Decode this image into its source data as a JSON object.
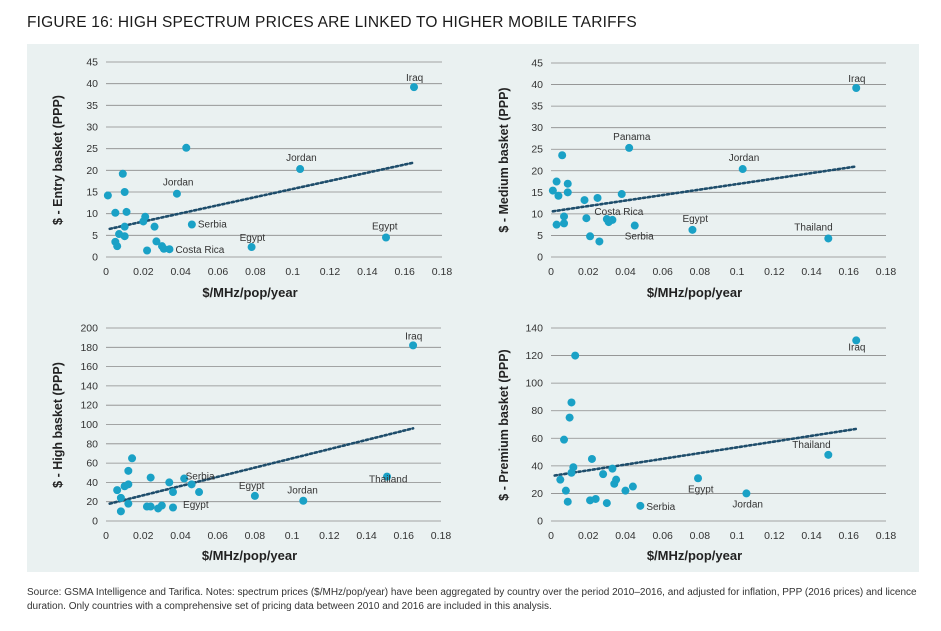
{
  "figure_title": "FIGURE 16: HIGH SPECTRUM PRICES ARE LINKED TO HIGHER MOBILE TARIFFS",
  "source_note": "Source: GSMA Intelligence and Tarifica. Notes: spectrum prices ($/MHz/pop/year) have been aggregated by country over the period 2010–2016, and adjusted for inflation, PPP (2016 prices) and licence duration. Only countries with a comprehensive set of pricing data between 2010 and 2016 are included in this analysis.",
  "colors": {
    "points": "#1aa1c6",
    "trend": "#1e4d6b",
    "grid": "#8a8a8a",
    "background": "#eaf1f1"
  },
  "chart_data": [
    {
      "type": "scatter",
      "title": "",
      "xlabel": "$/MHz/pop/year",
      "ylabel": "$ - Entry basket (PPP)",
      "xlim": [
        0,
        0.18
      ],
      "ylim": [
        0,
        45
      ],
      "xticks": [
        "0",
        "0.02",
        "0.04",
        "0.06",
        "0.08",
        "0.1",
        "0.12",
        "0.14",
        "0.16",
        "0.18"
      ],
      "yticks": [
        "0",
        "5",
        "10",
        "15",
        "20",
        "25",
        "30",
        "35",
        "40",
        "45"
      ],
      "grid": "horizontal",
      "points": [
        {
          "x": 0.001,
          "y": 14.2
        },
        {
          "x": 0.005,
          "y": 10.2
        },
        {
          "x": 0.005,
          "y": 3.5
        },
        {
          "x": 0.006,
          "y": 2.5
        },
        {
          "x": 0.007,
          "y": 5.3
        },
        {
          "x": 0.009,
          "y": 19.2
        },
        {
          "x": 0.01,
          "y": 15.0
        },
        {
          "x": 0.011,
          "y": 10.4
        },
        {
          "x": 0.01,
          "y": 4.8
        },
        {
          "x": 0.01,
          "y": 7.0
        },
        {
          "x": 0.02,
          "y": 8.2
        },
        {
          "x": 0.021,
          "y": 9.3
        },
        {
          "x": 0.022,
          "y": 1.5
        },
        {
          "x": 0.026,
          "y": 7.0
        },
        {
          "x": 0.027,
          "y": 3.6
        },
        {
          "x": 0.03,
          "y": 2.5
        },
        {
          "x": 0.031,
          "y": 1.9
        },
        {
          "x": 0.034,
          "y": 1.8
        },
        {
          "x": 0.038,
          "y": 14.6
        },
        {
          "x": 0.043,
          "y": 25.2
        },
        {
          "x": 0.046,
          "y": 7.5
        },
        {
          "x": 0.078,
          "y": 2.3
        },
        {
          "x": 0.104,
          "y": 20.3
        },
        {
          "x": 0.15,
          "y": 4.5
        },
        {
          "x": 0.165,
          "y": 39.2
        }
      ],
      "trendline": [
        {
          "x": 0.002,
          "y": 6.5
        },
        {
          "x": 0.165,
          "y": 21.8
        }
      ],
      "annotations": [
        {
          "text": "Iraq",
          "x": 0.165,
          "y": 39.2
        },
        {
          "text": "Jordan",
          "x": 0.104,
          "y": 20.3
        },
        {
          "text": "Jordan",
          "x": 0.038,
          "y": 14.6
        },
        {
          "text": "Serbia",
          "x": 0.046,
          "y": 7.5
        },
        {
          "text": "Egypt",
          "x": 0.15,
          "y": 4.5
        },
        {
          "text": "Egypt",
          "x": 0.078,
          "y": 2.3
        },
        {
          "text": "Costa Rica",
          "x": 0.034,
          "y": 1.8
        }
      ]
    },
    {
      "type": "scatter",
      "title": "",
      "xlabel": "$/MHz/pop/year",
      "ylabel": "$ - Medium basket (PPP)",
      "xlim": [
        0,
        0.18
      ],
      "ylim": [
        0,
        45
      ],
      "xticks": [
        "0",
        "0.02",
        "0.04",
        "0.06",
        "0.08",
        "0.1",
        "0.12",
        "0.14",
        "0.16",
        "0.18"
      ],
      "yticks": [
        "0",
        "5",
        "10",
        "15",
        "20",
        "25",
        "30",
        "35",
        "40",
        "45"
      ],
      "grid": "horizontal",
      "points": [
        {
          "x": 0.001,
          "y": 15.4
        },
        {
          "x": 0.003,
          "y": 17.5
        },
        {
          "x": 0.003,
          "y": 7.5
        },
        {
          "x": 0.004,
          "y": 14.2
        },
        {
          "x": 0.006,
          "y": 23.6
        },
        {
          "x": 0.007,
          "y": 9.4
        },
        {
          "x": 0.007,
          "y": 7.8
        },
        {
          "x": 0.009,
          "y": 17.0
        },
        {
          "x": 0.009,
          "y": 15.0
        },
        {
          "x": 0.018,
          "y": 13.2
        },
        {
          "x": 0.019,
          "y": 9.0
        },
        {
          "x": 0.021,
          "y": 4.8
        },
        {
          "x": 0.025,
          "y": 13.7
        },
        {
          "x": 0.026,
          "y": 3.6
        },
        {
          "x": 0.03,
          "y": 8.8
        },
        {
          "x": 0.031,
          "y": 8.1
        },
        {
          "x": 0.033,
          "y": 8.6
        },
        {
          "x": 0.038,
          "y": 14.6
        },
        {
          "x": 0.042,
          "y": 25.3
        },
        {
          "x": 0.045,
          "y": 7.3
        },
        {
          "x": 0.076,
          "y": 6.3
        },
        {
          "x": 0.103,
          "y": 20.4
        },
        {
          "x": 0.149,
          "y": 4.3
        },
        {
          "x": 0.164,
          "y": 39.2
        }
      ],
      "trendline": [
        {
          "x": 0.001,
          "y": 10.6
        },
        {
          "x": 0.164,
          "y": 21.0
        }
      ],
      "annotations": [
        {
          "text": "Iraq",
          "x": 0.164,
          "y": 39.2
        },
        {
          "text": "Panama",
          "x": 0.042,
          "y": 25.3
        },
        {
          "text": "Jordan",
          "x": 0.103,
          "y": 20.4
        },
        {
          "text": "Costa Rica",
          "x": 0.033,
          "y": 8.6
        },
        {
          "text": "Egypt",
          "x": 0.076,
          "y": 6.3
        },
        {
          "text": "Thailand",
          "x": 0.149,
          "y": 4.3
        },
        {
          "text": "Serbia",
          "x": 0.045,
          "y": 7.3
        }
      ]
    },
    {
      "type": "scatter",
      "title": "",
      "xlabel": "$/MHz/pop/year",
      "ylabel": "$ - High basket (PPP)",
      "xlim": [
        0,
        0.18
      ],
      "ylim": [
        0,
        200
      ],
      "xticks": [
        "0",
        "0.02",
        "0.04",
        "0.06",
        "0.08",
        "0.1",
        "0.12",
        "0.14",
        "0.16",
        "0.18"
      ],
      "yticks": [
        "0",
        "20",
        "40",
        "60",
        "80",
        "100",
        "120",
        "140",
        "160",
        "180",
        "200"
      ],
      "grid": "horizontal",
      "points": [
        {
          "x": 0.006,
          "y": 32
        },
        {
          "x": 0.008,
          "y": 10
        },
        {
          "x": 0.008,
          "y": 24
        },
        {
          "x": 0.01,
          "y": 36
        },
        {
          "x": 0.012,
          "y": 38
        },
        {
          "x": 0.012,
          "y": 52
        },
        {
          "x": 0.012,
          "y": 18
        },
        {
          "x": 0.014,
          "y": 65
        },
        {
          "x": 0.022,
          "y": 15
        },
        {
          "x": 0.024,
          "y": 15
        },
        {
          "x": 0.024,
          "y": 45
        },
        {
          "x": 0.028,
          "y": 13
        },
        {
          "x": 0.03,
          "y": 16
        },
        {
          "x": 0.034,
          "y": 40
        },
        {
          "x": 0.036,
          "y": 14
        },
        {
          "x": 0.036,
          "y": 30
        },
        {
          "x": 0.042,
          "y": 44
        },
        {
          "x": 0.046,
          "y": 38
        },
        {
          "x": 0.05,
          "y": 30
        },
        {
          "x": 0.08,
          "y": 26
        },
        {
          "x": 0.106,
          "y": 21
        },
        {
          "x": 0.151,
          "y": 46
        },
        {
          "x": 0.165,
          "y": 182
        }
      ],
      "trendline": [
        {
          "x": 0.002,
          "y": 18
        },
        {
          "x": 0.165,
          "y": 96
        }
      ],
      "annotations": [
        {
          "text": "Iraq",
          "x": 0.165,
          "y": 182
        },
        {
          "text": "Serbia",
          "x": 0.046,
          "y": 38
        },
        {
          "text": "Egypt",
          "x": 0.08,
          "y": 26
        },
        {
          "text": "Egypt",
          "x": 0.05,
          "y": 30
        },
        {
          "text": "Jordan",
          "x": 0.106,
          "y": 21
        },
        {
          "text": "Thailand",
          "x": 0.151,
          "y": 46
        }
      ]
    },
    {
      "type": "scatter",
      "title": "",
      "xlabel": "$/MHz/pop/year",
      "ylabel": "$ - Premium basket (PPP)",
      "xlim": [
        0,
        0.18
      ],
      "ylim": [
        0,
        140
      ],
      "xticks": [
        "0",
        "0.02",
        "0.04",
        "0.06",
        "0.08",
        "0.1",
        "0.12",
        "0.14",
        "0.16",
        "0.18"
      ],
      "yticks": [
        "0",
        "20",
        "40",
        "60",
        "80",
        "100",
        "120",
        "140"
      ],
      "grid": "horizontal",
      "points": [
        {
          "x": 0.005,
          "y": 30
        },
        {
          "x": 0.007,
          "y": 59
        },
        {
          "x": 0.008,
          "y": 22
        },
        {
          "x": 0.009,
          "y": 14
        },
        {
          "x": 0.01,
          "y": 75
        },
        {
          "x": 0.011,
          "y": 86
        },
        {
          "x": 0.011,
          "y": 35
        },
        {
          "x": 0.012,
          "y": 39
        },
        {
          "x": 0.013,
          "y": 120
        },
        {
          "x": 0.021,
          "y": 15
        },
        {
          "x": 0.022,
          "y": 45
        },
        {
          "x": 0.024,
          "y": 16
        },
        {
          "x": 0.028,
          "y": 34
        },
        {
          "x": 0.03,
          "y": 13
        },
        {
          "x": 0.033,
          "y": 38
        },
        {
          "x": 0.034,
          "y": 27
        },
        {
          "x": 0.035,
          "y": 30
        },
        {
          "x": 0.04,
          "y": 22
        },
        {
          "x": 0.044,
          "y": 25
        },
        {
          "x": 0.048,
          "y": 11
        },
        {
          "x": 0.079,
          "y": 31
        },
        {
          "x": 0.105,
          "y": 20
        },
        {
          "x": 0.149,
          "y": 48
        },
        {
          "x": 0.164,
          "y": 131
        }
      ],
      "trendline": [
        {
          "x": 0.002,
          "y": 33
        },
        {
          "x": 0.165,
          "y": 67
        }
      ],
      "annotations": [
        {
          "text": "Iraq",
          "x": 0.164,
          "y": 131
        },
        {
          "text": "Thailand",
          "x": 0.149,
          "y": 48
        },
        {
          "text": "Egypt",
          "x": 0.079,
          "y": 31
        },
        {
          "text": "Jordan",
          "x": 0.105,
          "y": 20
        },
        {
          "text": "Serbia",
          "x": 0.048,
          "y": 11
        }
      ]
    }
  ]
}
